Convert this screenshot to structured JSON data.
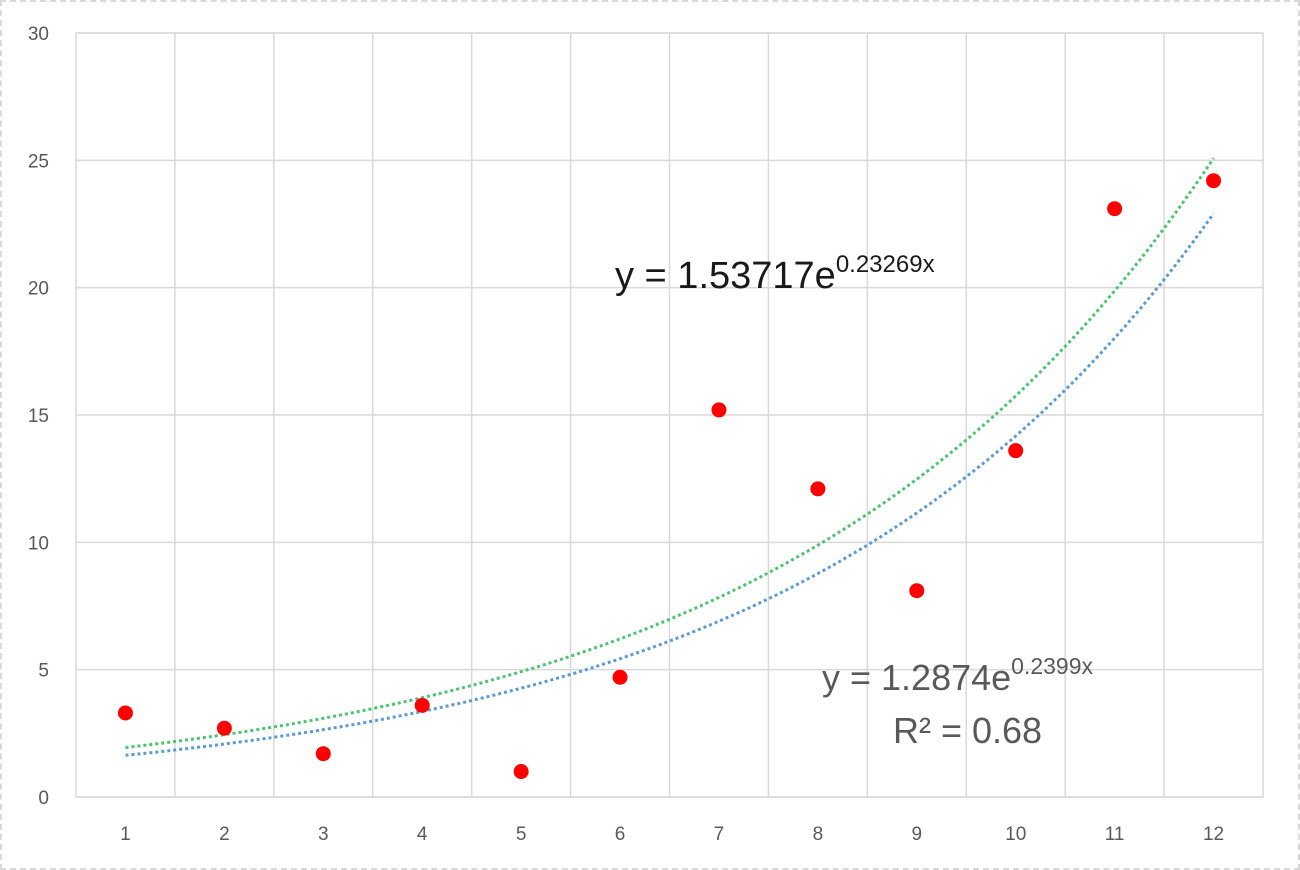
{
  "chart_data": {
    "type": "scatter",
    "title": "",
    "xlabel": "",
    "ylabel": "",
    "xlim": [
      0.5,
      12.5
    ],
    "ylim": [
      0,
      30
    ],
    "x_ticks": [
      1,
      2,
      3,
      4,
      5,
      6,
      7,
      8,
      9,
      10,
      11,
      12
    ],
    "y_ticks": [
      0,
      5,
      10,
      15,
      20,
      25,
      30
    ],
    "grid": true,
    "legend": "none",
    "series": [
      {
        "kind": "points",
        "color": "#ff0000",
        "x": [
          1,
          2,
          3,
          4,
          5,
          6,
          7,
          8,
          9,
          10,
          11,
          12
        ],
        "y": [
          3.3,
          2.7,
          1.7,
          3.6,
          1.0,
          4.7,
          15.2,
          12.1,
          8.1,
          13.6,
          23.1,
          24.2
        ]
      },
      {
        "kind": "trendline",
        "color": "#4cc470",
        "style": "dotted",
        "a": 1.53717,
        "b": 0.23269,
        "x_range": [
          1,
          12
        ]
      },
      {
        "kind": "trendline",
        "color": "#5b9bd5",
        "style": "dotted",
        "a": 1.2874,
        "b": 0.2399,
        "x_range": [
          1,
          12
        ]
      }
    ],
    "annotations": {
      "eq1_base": "y = 1.53717e",
      "eq1_exp": "0.23269x",
      "eq2_base": "y = 1.2874e",
      "eq2_exp": "0.2399x",
      "r2": "R² = 0.68"
    }
  }
}
